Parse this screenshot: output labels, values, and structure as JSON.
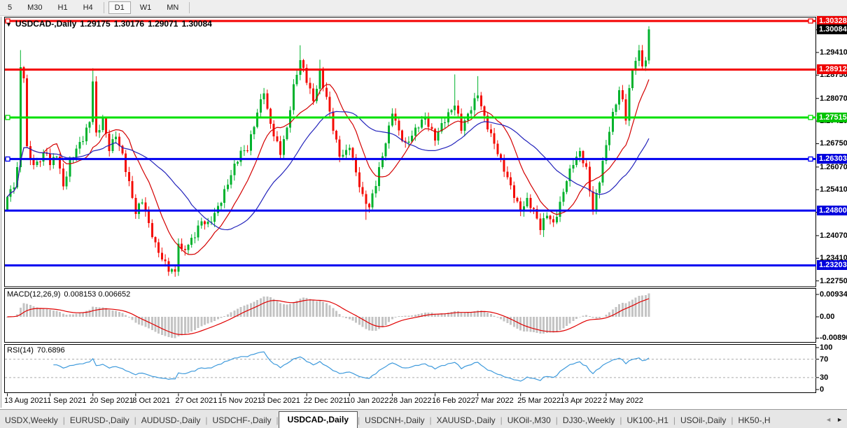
{
  "toolbar": {
    "timeframes": [
      "5",
      "M30",
      "H1",
      "H4",
      "D1",
      "W1",
      "MN"
    ],
    "active": "D1"
  },
  "chart": {
    "symbol": "USDCAD-,Daily",
    "open": "1.29175",
    "high": "1.30176",
    "low": "1.29071",
    "close": "1.30084"
  },
  "chart_data": {
    "type": "candlestick",
    "symbol": "USDCAD",
    "timeframe": "Daily",
    "last_ohlc": [
      1.29175,
      1.30176,
      1.29071,
      1.30084
    ],
    "price_axis": {
      "top_price": 1.3043,
      "bottom_price": 1.2258,
      "plain_labels": [
        "1.30070",
        "1.29410",
        "1.28750",
        "1.28070",
        "1.27410",
        "1.26750",
        "1.26070",
        "1.25410",
        "1.24750",
        "1.24070",
        "1.23410",
        "1.22750"
      ],
      "badges": [
        {
          "text": "1.30328",
          "bg": "#ee0000"
        },
        {
          "text": "1.30084",
          "bg": "#000000"
        },
        {
          "text": "1.28912",
          "bg": "#ee0000"
        },
        {
          "text": "1.27515",
          "bg": "#00c400"
        },
        {
          "text": "1.26303",
          "bg": "#0000dd"
        },
        {
          "text": "1.24800",
          "bg": "#0000dd"
        },
        {
          "text": "1.23203",
          "bg": "#0000dd"
        }
      ]
    },
    "hlines": [
      {
        "price": 1.30328,
        "color": "#f40000",
        "width": 3,
        "handles": true
      },
      {
        "price": 1.28912,
        "color": "#f40000",
        "width": 3,
        "handles": false
      },
      {
        "price": 1.27515,
        "color": "#00e000",
        "width": 3,
        "handles": true
      },
      {
        "price": 1.26303,
        "color": "#0000f0",
        "width": 3,
        "handles": true
      },
      {
        "price": 1.248,
        "color": "#0000f0",
        "width": 3,
        "handles": false
      },
      {
        "price": 1.23203,
        "color": "#0000f0",
        "width": 3,
        "handles": false
      }
    ],
    "x_axis": {
      "labels": [
        "13 Aug 2021",
        "1 Sep 2021",
        "20 Sep 2021",
        "8 Oct 2021",
        "27 Oct 2021",
        "15 Nov 2021",
        "3 Dec 2021",
        "22 Dec 2021",
        "10 Jan 2022",
        "28 Jan 2022",
        "16 Feb 2022",
        "7 Mar 2022",
        "25 Mar 2022",
        "13 Apr 2022",
        "2 May 2022"
      ],
      "candles_per_label": 13
    },
    "candles": {
      "count": 196,
      "up_color": "#00b22d",
      "down_color": "#f40c05",
      "close_anchors": [
        [
          0,
          1.252
        ],
        [
          2,
          1.2555
        ],
        [
          3,
          1.26
        ],
        [
          4,
          1.29
        ],
        [
          5,
          1.287
        ],
        [
          6,
          1.266
        ],
        [
          8,
          1.261
        ],
        [
          10,
          1.263
        ],
        [
          12,
          1.265
        ],
        [
          13,
          1.2615
        ],
        [
          15,
          1.2645
        ],
        [
          17,
          1.255
        ],
        [
          19,
          1.262
        ],
        [
          21,
          1.266
        ],
        [
          23,
          1.269
        ],
        [
          25,
          1.274
        ],
        [
          26,
          1.286
        ],
        [
          27,
          1.27
        ],
        [
          29,
          1.2745
        ],
        [
          31,
          1.266
        ],
        [
          33,
          1.27
        ],
        [
          35,
          1.264
        ],
        [
          37,
          1.256
        ],
        [
          39,
          1.2475
        ],
        [
          41,
          1.251
        ],
        [
          43,
          1.244
        ],
        [
          45,
          1.238
        ],
        [
          47,
          1.234
        ],
        [
          49,
          1.231
        ],
        [
          51,
          1.23
        ],
        [
          52,
          1.239
        ],
        [
          53,
          1.236
        ],
        [
          55,
          1.238
        ],
        [
          57,
          1.241
        ],
        [
          59,
          1.245
        ],
        [
          61,
          1.244
        ],
        [
          63,
          1.247
        ],
        [
          65,
          1.251
        ],
        [
          67,
          1.256
        ],
        [
          69,
          1.261
        ],
        [
          71,
          1.265
        ],
        [
          73,
          1.266
        ],
        [
          75,
          1.273
        ],
        [
          77,
          1.28
        ],
        [
          78,
          1.283
        ],
        [
          79,
          1.277
        ],
        [
          81,
          1.27
        ],
        [
          83,
          1.265
        ],
        [
          85,
          1.272
        ],
        [
          87,
          1.284
        ],
        [
          89,
          1.292
        ],
        [
          91,
          1.286
        ],
        [
          93,
          1.28
        ],
        [
          95,
          1.288
        ],
        [
          97,
          1.281
        ],
        [
          99,
          1.272
        ],
        [
          101,
          1.264
        ],
        [
          103,
          1.265
        ],
        [
          104,
          1.267
        ],
        [
          106,
          1.259
        ],
        [
          108,
          1.252
        ],
        [
          110,
          1.249
        ],
        [
          112,
          1.256
        ],
        [
          114,
          1.264
        ],
        [
          116,
          1.272
        ],
        [
          117,
          1.277
        ],
        [
          119,
          1.271
        ],
        [
          121,
          1.267
        ],
        [
          123,
          1.27
        ],
        [
          125,
          1.273
        ],
        [
          127,
          1.275
        ],
        [
          129,
          1.271
        ],
        [
          130,
          1.269
        ],
        [
          132,
          1.273
        ],
        [
          134,
          1.276
        ],
        [
          136,
          1.279
        ],
        [
          138,
          1.272
        ],
        [
          140,
          1.276
        ],
        [
          142,
          1.28
        ],
        [
          143,
          1.282
        ],
        [
          145,
          1.275
        ],
        [
          147,
          1.27
        ],
        [
          149,
          1.265
        ],
        [
          151,
          1.26
        ],
        [
          153,
          1.255
        ],
        [
          155,
          1.25
        ],
        [
          156,
          1.248
        ],
        [
          158,
          1.251
        ],
        [
          160,
          1.248
        ],
        [
          162,
          1.243
        ],
        [
          164,
          1.247
        ],
        [
          166,
          1.244
        ],
        [
          168,
          1.25
        ],
        [
          170,
          1.257
        ],
        [
          172,
          1.262
        ],
        [
          174,
          1.265
        ],
        [
          176,
          1.26
        ],
        [
          178,
          1.248
        ],
        [
          180,
          1.257
        ],
        [
          182,
          1.267
        ],
        [
          184,
          1.276
        ],
        [
          186,
          1.283
        ],
        [
          187,
          1.28
        ],
        [
          188,
          1.275
        ],
        [
          189,
          1.283
        ],
        [
          190,
          1.289
        ],
        [
          191,
          1.292
        ],
        [
          192,
          1.294
        ],
        [
          193,
          1.29
        ],
        [
          194,
          1.29175
        ],
        [
          195,
          1.30084
        ]
      ],
      "extreme_overrides": [
        [
          4,
          1.2948,
          null
        ],
        [
          26,
          1.2895,
          null
        ],
        [
          51,
          null,
          1.2287
        ],
        [
          89,
          1.2962,
          null
        ],
        [
          95,
          1.292,
          null
        ],
        [
          109,
          null,
          1.2453
        ],
        [
          136,
          1.2877,
          null
        ],
        [
          143,
          1.2872,
          null
        ],
        [
          163,
          null,
          1.2403
        ],
        [
          195,
          1.30176,
          1.29071
        ]
      ]
    },
    "moving_averages": [
      {
        "period": 12,
        "color": "#d40000"
      },
      {
        "period": 30,
        "color": "#2222bb"
      }
    ],
    "macd": {
      "label": "MACD(12,26,9)",
      "values_text": "0.008153 0.006652",
      "fast": 12,
      "slow": 26,
      "signal": 9,
      "axis_labels": [
        "0.009345",
        "0.00",
        "-0.008902"
      ],
      "axis_values": [
        0.009345,
        0,
        -0.008902
      ],
      "hist_color": "#c4c4c4",
      "signal_color": "#e00000"
    },
    "rsi": {
      "label": "RSI(14)",
      "value_text": "70.6896",
      "period": 14,
      "axis_labels": [
        "100",
        "70",
        "30",
        "0"
      ],
      "axis_values": [
        100,
        70,
        30,
        0
      ],
      "levels": [
        70,
        30
      ],
      "line_color": "#3e9adc"
    }
  },
  "tabs": {
    "items": [
      "USDX,Weekly",
      "EURUSD-,Daily",
      "AUDUSD-,Daily",
      "USDCHF-,Daily",
      "USDCAD-,Daily",
      "USDCNH-,Daily",
      "XAUUSD-,Daily",
      "UKOil-,M30",
      "DJ30-,Weekly",
      "UK100-,H1",
      "USOil-,Daily",
      "HK50-,H"
    ],
    "active": "USDCAD-,Daily",
    "scroll_left_icon": "◄",
    "scroll_right_icon": "►"
  }
}
